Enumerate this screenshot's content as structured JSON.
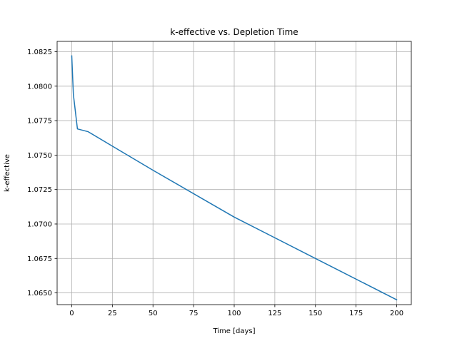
{
  "chart_data": {
    "type": "line",
    "title": "k-effective vs. Depletion Time",
    "xlabel": "Time [days]",
    "ylabel": "k-effective",
    "xlim": [
      -9.0,
      209.0
    ],
    "ylim": [
      1.06415,
      1.08325
    ],
    "grid": true,
    "legend": "none",
    "x_ticks": [
      0,
      25,
      50,
      75,
      100,
      125,
      150,
      175,
      200
    ],
    "x_tick_labels": [
      "0",
      "25",
      "50",
      "75",
      "100",
      "125",
      "150",
      "175",
      "200"
    ],
    "y_ticks": [
      1.065,
      1.0675,
      1.07,
      1.0725,
      1.075,
      1.0775,
      1.08,
      1.0825
    ],
    "y_tick_labels": [
      "1.0650",
      "1.0675",
      "1.0700",
      "1.0725",
      "1.0750",
      "1.0775",
      "1.0800",
      "1.0825"
    ],
    "series": [
      {
        "color": "#1f77b4",
        "x": [
          0,
          1,
          3.5,
          10,
          30,
          50,
          100,
          150,
          200
        ],
        "y": [
          1.0822,
          1.0794,
          1.0769,
          1.0767,
          1.0753,
          1.0739,
          1.0705,
          1.0675,
          1.0645
        ]
      }
    ]
  }
}
